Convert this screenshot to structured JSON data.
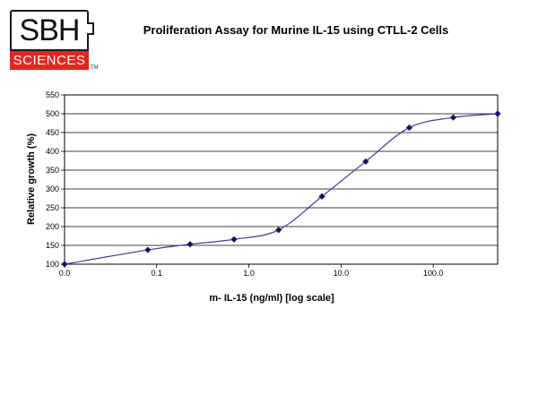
{
  "logo": {
    "top_text": "SBH",
    "bottom_text": "SCIENCES",
    "tm": "TM"
  },
  "chart_data": {
    "type": "line",
    "title": "Proliferation Assay for Murine IL-15 using CTLL-2 Cells",
    "xlabel": "m- IL-15 (ng/ml) [log scale]",
    "ylabel": "Relative growth (%)",
    "x_scale": "log",
    "x_ticks": [
      {
        "value": 0.01,
        "label": "0.0"
      },
      {
        "value": 0.1,
        "label": "0.1"
      },
      {
        "value": 1,
        "label": "1.0"
      },
      {
        "value": 10,
        "label": "10.0"
      },
      {
        "value": 100,
        "label": "100.0"
      }
    ],
    "xlim": [
      0.01,
      500
    ],
    "ylim": [
      100,
      550
    ],
    "y_ticks": [
      100,
      150,
      200,
      250,
      300,
      350,
      400,
      450,
      500,
      550
    ],
    "grid": "horizontal",
    "colors": {
      "line": "#3c3c9e",
      "marker": "#14146e"
    },
    "series": [
      {
        "x": [
          0.01,
          0.08,
          0.23,
          0.69,
          2.1,
          6.2,
          18.5,
          55,
          165,
          500
        ],
        "y": [
          100,
          138,
          153,
          166,
          191,
          280,
          373,
          463,
          490,
          500
        ]
      }
    ]
  }
}
